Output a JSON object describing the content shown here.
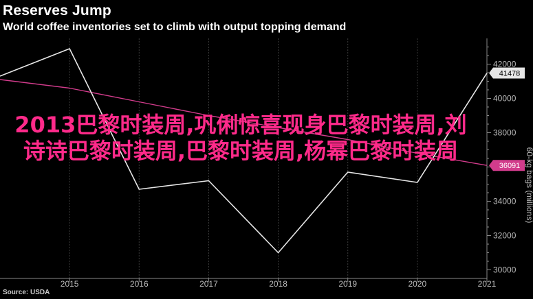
{
  "header": {
    "title": "Reserves Jump",
    "subtitle": "World coffee inventories set to climb with output topping demand",
    "source": "Source: USDA"
  },
  "overlay": {
    "text": "2013巴黎时装周,巩俐惊喜现身巴黎时装周,刘诗诗巴黎时装周,巴黎时装周,杨幂巴黎时装周"
  },
  "colors": {
    "background": "#000000",
    "series": "#e6e6e6",
    "trend": "#d23c8c",
    "overlay_text": "#ff2a8a",
    "grid": "#3a3a3a"
  },
  "chart_data": {
    "type": "line",
    "title": "Reserves Jump",
    "subtitle": "World coffee inventories set to climb with output topping demand",
    "ylabel": "60-kg bags (millions)",
    "xlim": [
      2014,
      2021
    ],
    "ylim": [
      29500,
      43500
    ],
    "x_ticks": [
      "2015",
      "2016",
      "2017",
      "2018",
      "2019",
      "2020",
      "2021"
    ],
    "y_ticks": [
      30000,
      32000,
      34000,
      36000,
      38000,
      40000,
      42000
    ],
    "y_tick_labels": [
      "30000",
      "32000",
      "34000",
      "36000",
      "38000",
      "40000",
      "42000"
    ],
    "grid": "vertical",
    "series": [
      {
        "x": [
          2014,
          2015,
          2016,
          2017,
          2018,
          2019,
          2020,
          2021
        ],
        "values": [
          41300,
          42900,
          34700,
          35200,
          31000,
          35700,
          35100,
          41478
        ],
        "color": "#e6e6e6",
        "end_label": "41478"
      },
      {
        "x": [
          2014,
          2015,
          2016,
          2017,
          2018,
          2019,
          2020,
          2021
        ],
        "values": [
          41100,
          40600,
          39800,
          39000,
          38300,
          37600,
          36800,
          36091
        ],
        "color": "#d23c8c",
        "end_label": "36091"
      }
    ]
  }
}
